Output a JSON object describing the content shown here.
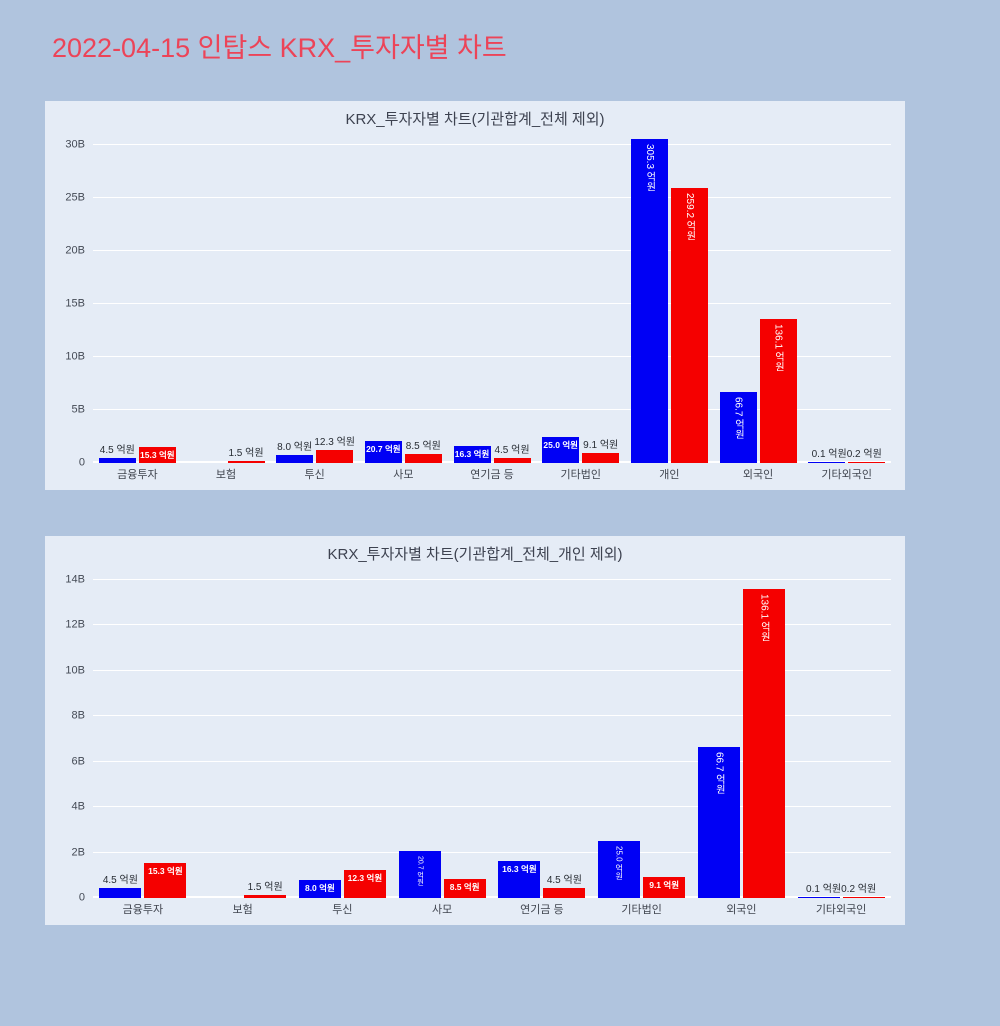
{
  "page": {
    "title": "2022-04-15 인탑스 KRX_투자자별 차트"
  },
  "style": {
    "page_bg": "#b0c4de",
    "paper_bg": "#e5ecf6",
    "title_color": "#ec4458",
    "grid_color": "#ffffff",
    "series_blue": "#0000f5",
    "series_red": "#f50000"
  },
  "unit": "억원",
  "chart_data": [
    {
      "type": "bar",
      "title": "KRX_투자자별 차트(기관합계_전체 제외)",
      "xlabel": "",
      "ylabel": "",
      "values_unit": "억원",
      "axis_note": "y axis in billions (1 억원 = 0.1B)",
      "ylim": [
        0,
        32
      ],
      "grid": true,
      "legend": "none",
      "yticks": [
        {
          "v": 0,
          "label": "0"
        },
        {
          "v": 5,
          "label": "5B"
        },
        {
          "v": 10,
          "label": "10B"
        },
        {
          "v": 15,
          "label": "15B"
        },
        {
          "v": 20,
          "label": "20B"
        },
        {
          "v": 25,
          "label": "25B"
        },
        {
          "v": 30,
          "label": "30B"
        }
      ],
      "categories": [
        "금융투자",
        "보험",
        "투신",
        "사모",
        "연기금 등",
        "기타법인",
        "개인",
        "외국인",
        "기타외국인"
      ],
      "series": [
        {
          "name": "blue",
          "color": "#0000f5",
          "values": [
            4.5,
            null,
            8.0,
            20.7,
            16.3,
            25.0,
            305.3,
            66.7,
            0.1
          ],
          "labels": [
            "4.5 억원",
            null,
            "8.0 억원",
            "20.7 억원",
            "16.3 억원",
            "25.0 억원",
            "305.3 억원",
            "66.7 억원",
            "0.1 억원"
          ]
        },
        {
          "name": "red",
          "color": "#f50000",
          "values": [
            15.3,
            1.5,
            12.3,
            8.5,
            4.5,
            9.1,
            259.2,
            136.1,
            0.2
          ],
          "labels": [
            "15.3 억원",
            "1.5 억원",
            "12.3 억원",
            "8.5 억원",
            "4.5 억원",
            "9.1 억원",
            "259.2 억원",
            "136.1 억원",
            "0.2 억원"
          ]
        }
      ]
    },
    {
      "type": "bar",
      "title": "KRX_투자자별 차트(기관합계_전체_개인 제외)",
      "xlabel": "",
      "ylabel": "",
      "values_unit": "억원",
      "axis_note": "y axis in billions (1 억원 = 0.1B)",
      "ylim": [
        0,
        14.5
      ],
      "grid": true,
      "legend": "none",
      "yticks": [
        {
          "v": 0,
          "label": "0"
        },
        {
          "v": 2,
          "label": "2B"
        },
        {
          "v": 4,
          "label": "4B"
        },
        {
          "v": 6,
          "label": "6B"
        },
        {
          "v": 8,
          "label": "8B"
        },
        {
          "v": 10,
          "label": "10B"
        },
        {
          "v": 12,
          "label": "12B"
        },
        {
          "v": 14,
          "label": "14B"
        }
      ],
      "categories": [
        "금융투자",
        "보험",
        "투신",
        "사모",
        "연기금 등",
        "기타법인",
        "외국인",
        "기타외국인"
      ],
      "series": [
        {
          "name": "blue",
          "color": "#0000f5",
          "values": [
            4.5,
            null,
            8.0,
            20.7,
            16.3,
            25.0,
            66.7,
            0.1
          ],
          "labels": [
            "4.5 억원",
            null,
            "8.0 억원",
            "20.7 억원",
            "16.3 억원",
            "25.0 억원",
            "66.7 억원",
            "0.1 억원"
          ]
        },
        {
          "name": "red",
          "color": "#f50000",
          "values": [
            15.3,
            1.5,
            12.3,
            8.5,
            4.5,
            9.1,
            136.1,
            0.2
          ],
          "labels": [
            "15.3 억원",
            "1.5 억원",
            "12.3 억원",
            "8.5 억원",
            "4.5 억원",
            "9.1 억원",
            "136.1 억원",
            "0.2 억원"
          ]
        }
      ]
    }
  ]
}
